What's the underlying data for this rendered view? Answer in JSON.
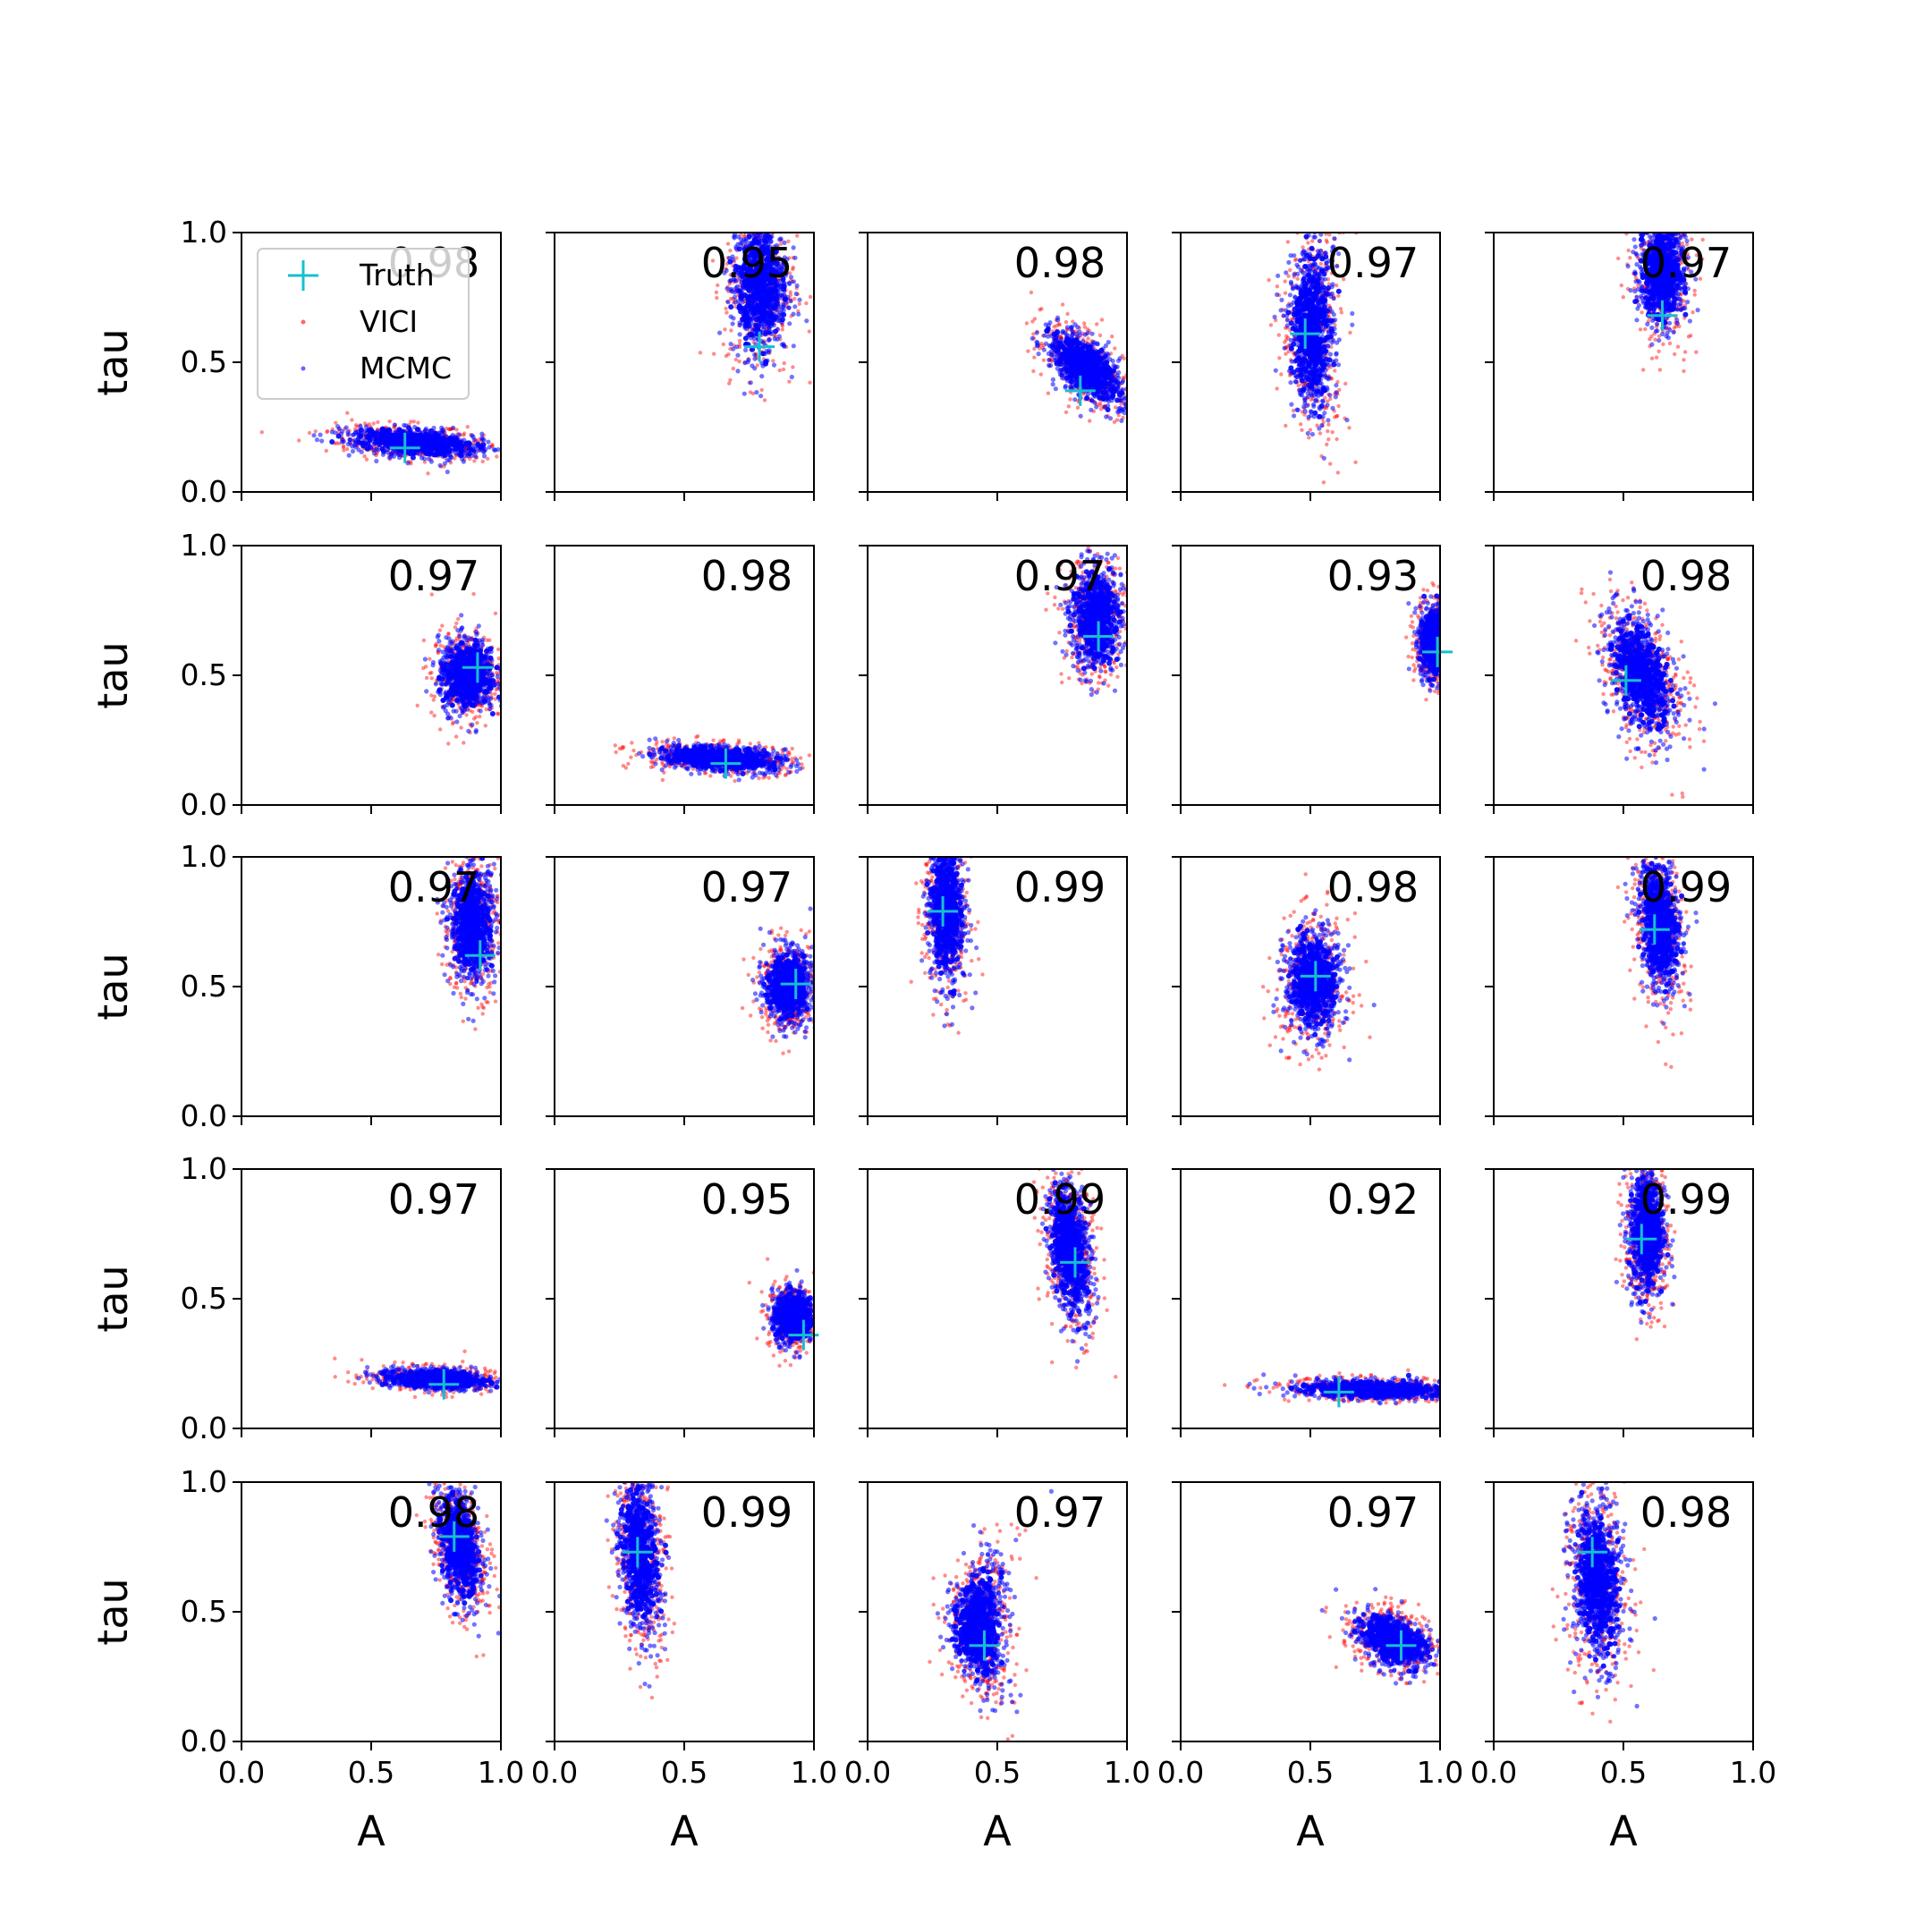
{
  "chart_data": {
    "type": "scatter",
    "layout": {
      "rows": 5,
      "cols": 5
    },
    "xlabel": "A",
    "ylabel": "tau",
    "xlim": [
      0,
      1
    ],
    "ylim": [
      0,
      1
    ],
    "x_ticks": [
      "0.0",
      "0.5",
      "1.0"
    ],
    "y_ticks": [
      "0.0",
      "0.5",
      "1.0"
    ],
    "grid": false,
    "legend": {
      "placement": "upper-left of first panel",
      "entries": [
        {
          "label": "Truth",
          "marker": "plus",
          "color": "#17becf"
        },
        {
          "label": "VICI",
          "marker": "dot",
          "color": "#ff0000"
        },
        {
          "label": "MCMC",
          "marker": "dot",
          "color": "#0000ff"
        }
      ]
    },
    "series_colors": {
      "truth": "#17becf",
      "vici": "#ff0000",
      "mcmc": "#0000ff"
    },
    "panels": [
      {
        "score": "0.98",
        "truth": [
          0.63,
          0.17
        ],
        "cloud": {
          "cx": 0.67,
          "cy": 0.19,
          "sx": 0.12,
          "sy": 0.028,
          "tilt": -0.5,
          "bend": 0
        }
      },
      {
        "score": "0.95",
        "truth": [
          0.79,
          0.56
        ],
        "cloud": {
          "cx": 0.79,
          "cy": 0.8,
          "sx": 0.055,
          "sy": 0.14,
          "tilt": 0,
          "bend": 0
        }
      },
      {
        "score": "0.98",
        "truth": [
          0.82,
          0.39
        ],
        "cloud": {
          "cx": 0.84,
          "cy": 0.48,
          "sx": 0.06,
          "sy": 0.07,
          "tilt": -0.9,
          "bend": 0
        }
      },
      {
        "score": "0.97",
        "truth": [
          0.48,
          0.61
        ],
        "cloud": {
          "cx": 0.5,
          "cy": 0.63,
          "sx": 0.045,
          "sy": 0.17,
          "tilt": 0,
          "bend": 0.5
        }
      },
      {
        "score": "0.97",
        "truth": [
          0.65,
          0.68
        ],
        "cloud": {
          "cx": 0.65,
          "cy": 0.85,
          "sx": 0.045,
          "sy": 0.11,
          "tilt": 0,
          "bend": 0
        }
      },
      {
        "score": "0.97",
        "truth": [
          0.91,
          0.53
        ],
        "cloud": {
          "cx": 0.87,
          "cy": 0.5,
          "sx": 0.055,
          "sy": 0.07,
          "tilt": 0,
          "bend": 0
        }
      },
      {
        "score": "0.98",
        "truth": [
          0.66,
          0.16
        ],
        "cloud": {
          "cx": 0.64,
          "cy": 0.18,
          "sx": 0.12,
          "sy": 0.025,
          "tilt": -0.35,
          "bend": 0
        }
      },
      {
        "score": "0.97",
        "truth": [
          0.89,
          0.65
        ],
        "cloud": {
          "cx": 0.88,
          "cy": 0.72,
          "sx": 0.05,
          "sy": 0.1,
          "tilt": 0,
          "bend": 0
        }
      },
      {
        "score": "0.93",
        "truth": [
          0.99,
          0.59
        ],
        "cloud": {
          "cx": 0.98,
          "cy": 0.63,
          "sx": 0.03,
          "sy": 0.07,
          "tilt": 0,
          "bend": 0
        }
      },
      {
        "score": "0.98",
        "truth": [
          0.51,
          0.48
        ],
        "cloud": {
          "cx": 0.57,
          "cy": 0.5,
          "sx": 0.06,
          "sy": 0.12,
          "tilt": -0.6,
          "bend": 0
        }
      },
      {
        "score": "0.97",
        "truth": [
          0.92,
          0.62
        ],
        "cloud": {
          "cx": 0.89,
          "cy": 0.74,
          "sx": 0.045,
          "sy": 0.11,
          "tilt": 0,
          "bend": 0
        }
      },
      {
        "score": "0.97",
        "truth": [
          0.93,
          0.51
        ],
        "cloud": {
          "cx": 0.9,
          "cy": 0.5,
          "sx": 0.045,
          "sy": 0.07,
          "tilt": 0,
          "bend": 0
        }
      },
      {
        "score": "0.99",
        "truth": [
          0.29,
          0.79
        ],
        "cloud": {
          "cx": 0.3,
          "cy": 0.8,
          "sx": 0.035,
          "sy": 0.15,
          "tilt": 0,
          "bend": 0.3
        }
      },
      {
        "score": "0.98",
        "truth": [
          0.52,
          0.54
        ],
        "cloud": {
          "cx": 0.51,
          "cy": 0.52,
          "sx": 0.055,
          "sy": 0.1,
          "tilt": 0,
          "bend": 0
        }
      },
      {
        "score": "0.99",
        "truth": [
          0.62,
          0.72
        ],
        "cloud": {
          "cx": 0.64,
          "cy": 0.74,
          "sx": 0.04,
          "sy": 0.13,
          "tilt": -0.3,
          "bend": 0
        }
      },
      {
        "score": "0.97",
        "truth": [
          0.78,
          0.17
        ],
        "cloud": {
          "cx": 0.75,
          "cy": 0.19,
          "sx": 0.1,
          "sy": 0.02,
          "tilt": -0.3,
          "bend": 0
        }
      },
      {
        "score": "0.95",
        "truth": [
          0.96,
          0.36
        ],
        "cloud": {
          "cx": 0.92,
          "cy": 0.43,
          "sx": 0.04,
          "sy": 0.05,
          "tilt": 0,
          "bend": 0
        }
      },
      {
        "score": "0.99",
        "truth": [
          0.8,
          0.64
        ],
        "cloud": {
          "cx": 0.78,
          "cy": 0.69,
          "sx": 0.04,
          "sy": 0.13,
          "tilt": -0.4,
          "bend": 0
        }
      },
      {
        "score": "0.92",
        "truth": [
          0.61,
          0.14
        ],
        "cloud": {
          "cx": 0.75,
          "cy": 0.15,
          "sx": 0.15,
          "sy": 0.018,
          "tilt": -0.2,
          "bend": 0
        }
      },
      {
        "score": "0.99",
        "truth": [
          0.57,
          0.73
        ],
        "cloud": {
          "cx": 0.59,
          "cy": 0.76,
          "sx": 0.035,
          "sy": 0.13,
          "tilt": 0,
          "bend": 0
        }
      },
      {
        "score": "0.98",
        "truth": [
          0.82,
          0.79
        ],
        "cloud": {
          "cx": 0.84,
          "cy": 0.75,
          "sx": 0.04,
          "sy": 0.11,
          "tilt": -0.5,
          "bend": 0
        }
      },
      {
        "score": "0.99",
        "truth": [
          0.32,
          0.73
        ],
        "cloud": {
          "cx": 0.33,
          "cy": 0.72,
          "sx": 0.04,
          "sy": 0.15,
          "tilt": -0.3,
          "bend": 0
        }
      },
      {
        "score": "0.97",
        "truth": [
          0.45,
          0.37
        ],
        "cloud": {
          "cx": 0.42,
          "cy": 0.45,
          "sx": 0.05,
          "sy": 0.12,
          "tilt": 0,
          "bend": 0.6
        }
      },
      {
        "score": "0.97",
        "truth": [
          0.85,
          0.37
        ],
        "cloud": {
          "cx": 0.82,
          "cy": 0.39,
          "sx": 0.065,
          "sy": 0.055,
          "tilt": -0.5,
          "bend": 0
        }
      },
      {
        "score": "0.98",
        "truth": [
          0.38,
          0.73
        ],
        "cloud": {
          "cx": 0.4,
          "cy": 0.62,
          "sx": 0.05,
          "sy": 0.16,
          "tilt": -0.2,
          "bend": 0
        }
      }
    ]
  }
}
